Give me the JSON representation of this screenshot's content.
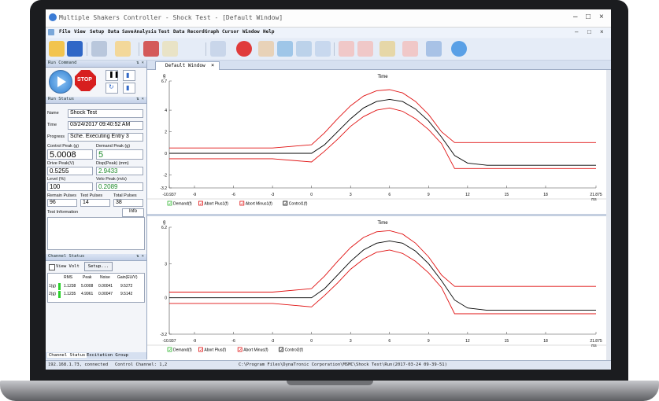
{
  "window": {
    "title": "Multiple Shakers Controller - Shock Test - [Default Window]"
  },
  "menu": [
    "File",
    "View",
    "Setup",
    "Data Save",
    "Analysis",
    "Test",
    "Data Record",
    "Graph",
    "Cursor",
    "Window",
    "Help"
  ],
  "toolbar": {
    "icons": [
      "open-icon",
      "save-icon",
      "hardware-icon",
      "report-icon",
      "test-setup-icon",
      "edit-icon",
      "waveform-icon",
      "stop-record-icon",
      "hand-icon",
      "zoom-in-icon",
      "zoom-fit-icon",
      "chart-icon",
      "chart2-icon",
      "cursor-icon",
      "chart3-icon",
      "flag-icon",
      "chat-icon"
    ]
  },
  "run_command": {
    "header": "Run Command",
    "stop_label": "STOP"
  },
  "run_status": {
    "header": "Run Status",
    "name_label": "Name",
    "name_value": "Shock Test",
    "time_label": "Time",
    "time_value": "03/24/2017 09:40:52 AM",
    "progress_label": "Progress",
    "progress_value": "Sche. Executing Entry 3",
    "control_peak_label": "Control Peak (g)",
    "control_peak_value": "5.0008",
    "demand_peak_label": "Demand Peak (g)",
    "demand_peak_value": "5",
    "drive_peak_label": "Drive Peak(V)",
    "drive_peak_value": "0.5255",
    "disp_peak_label": "Disp(Peak) (mm)",
    "disp_peak_value": "2.9433",
    "level_label": "Level (%)",
    "level_value": "100",
    "velo_peak_label": "Velo Peak (m/s)",
    "velo_peak_value": "0.2089",
    "remain_pulses_label": "Remain Pulses",
    "remain_pulses_value": "96",
    "test_pulses_label": "Test Pulses",
    "test_pulses_value": "14",
    "total_pulses_label": "Total Pulses",
    "total_pulses_value": "38",
    "test_info_label": "Test Information",
    "info_button": "Info"
  },
  "channel_status": {
    "header": "Channel Status",
    "view_volt_label": "View Volt",
    "setup_button": "Setup...",
    "columns": [
      "",
      "RMS",
      "Peak",
      "Noise",
      "Gain(EU/V)"
    ],
    "rows": [
      {
        "ch": "1(g)",
        "rms": "1.1238",
        "peak": "5.0008",
        "noise": "0.00041",
        "gain": "9.5272"
      },
      {
        "ch": "2(g)",
        "rms": "1.1235",
        "peak": "4.9961",
        "noise": "0.00047",
        "gain": "9.5142"
      }
    ]
  },
  "bottom_tabs": [
    "Channel Status",
    "Excitation Group"
  ],
  "tab_label": "Default Window",
  "chart_data": [
    {
      "type": "line",
      "title": "Time",
      "ylabel": "g",
      "xlabel": "ms",
      "xlim": [
        -10.937,
        21.875
      ],
      "ylim": [
        -3.2,
        6.7
      ],
      "yticks": [
        "6.7",
        "4",
        "2",
        "0",
        "-2",
        "-3.2"
      ],
      "xticks": [
        "-10.937",
        "-9",
        "-6",
        "-3",
        "0",
        "3",
        "6",
        "9",
        "12",
        "15",
        "18",
        "21.875"
      ],
      "legend": [
        "Demand(f)",
        "Abort Plus1(f)",
        "Abort Minus1(f)",
        "Control1(f)"
      ],
      "colors": {
        "Demand(f)": "#2bb52b",
        "Abort Plus1(f)": "#e01010",
        "Abort Minus1(f)": "#e01010",
        "Control1(f)": "#000000"
      },
      "series": [
        {
          "name": "Control1(f)",
          "x": [
            -10.937,
            -3,
            0,
            1,
            2,
            3,
            4,
            5,
            6,
            7,
            8,
            9,
            10,
            11,
            12,
            13.5,
            15,
            18,
            21.875
          ],
          "y": [
            0,
            0,
            0,
            0.8,
            2.0,
            3.2,
            4.2,
            4.8,
            5.0,
            4.8,
            4.1,
            3.0,
            1.5,
            -0.2,
            -0.9,
            -1.1,
            -1.1,
            -1.1,
            -1.1
          ]
        },
        {
          "name": "Abort Plus1(f)",
          "x": [
            -10.937,
            -3,
            0,
            1,
            2,
            3,
            4,
            5,
            6,
            7,
            8,
            9,
            10,
            11,
            12,
            15,
            18,
            21.875
          ],
          "y": [
            0.5,
            0.5,
            0.8,
            1.9,
            3.2,
            4.4,
            5.3,
            5.8,
            5.9,
            5.6,
            4.8,
            3.6,
            2.0,
            1.0,
            1.0,
            1.0,
            1.0,
            1.0
          ]
        },
        {
          "name": "Abort Minus1(f)",
          "x": [
            -10.937,
            -3,
            0,
            1,
            2,
            3,
            4,
            5,
            6,
            7,
            8,
            9,
            10,
            11,
            12,
            15,
            18,
            21.875
          ],
          "y": [
            -0.5,
            -0.5,
            -0.8,
            0.2,
            1.3,
            2.5,
            3.4,
            4.0,
            4.2,
            3.9,
            3.2,
            2.2,
            0.9,
            -1.4,
            -1.4,
            -1.4,
            -1.4,
            -1.4
          ]
        }
      ]
    },
    {
      "type": "line",
      "title": "Time",
      "ylabel": "g",
      "xlabel": "ms",
      "xlim": [
        -10.937,
        21.875
      ],
      "ylim": [
        -3.2,
        6.2
      ],
      "yticks": [
        "6.2",
        "3",
        "0",
        "-3.2"
      ],
      "xticks": [
        "-10.937",
        "-9",
        "-6",
        "-3",
        "0",
        "3",
        "6",
        "9",
        "12",
        "15",
        "18",
        "21.875"
      ],
      "legend": [
        "Demand(f)",
        "Abort Plus(f)",
        "Abort Minus(f)",
        "Control2(f)"
      ],
      "colors": {
        "Demand(f)": "#2bb52b",
        "Abort Plus(f)": "#e01010",
        "Abort Minus(f)": "#e01010",
        "Control2(f)": "#000000"
      },
      "series": [
        {
          "name": "Control2(f)",
          "x": [
            -10.937,
            -3,
            0,
            1,
            2,
            3,
            4,
            5,
            6,
            7,
            8,
            9,
            10,
            11,
            12,
            13.5,
            15,
            18,
            21.875
          ],
          "y": [
            0,
            0,
            0,
            0.8,
            2.0,
            3.2,
            4.2,
            4.8,
            5.0,
            4.8,
            4.1,
            3.0,
            1.5,
            -0.2,
            -0.9,
            -1.1,
            -1.1,
            -1.1,
            -1.1
          ]
        },
        {
          "name": "Abort Plus(f)",
          "x": [
            -10.937,
            -3,
            0,
            1,
            2,
            3,
            4,
            5,
            6,
            7,
            8,
            9,
            10,
            11,
            12,
            15,
            18,
            21.875
          ],
          "y": [
            0.5,
            0.5,
            0.8,
            1.9,
            3.2,
            4.4,
            5.3,
            5.8,
            5.9,
            5.6,
            4.8,
            3.6,
            2.0,
            1.0,
            1.0,
            1.0,
            1.0,
            1.0
          ]
        },
        {
          "name": "Abort Minus(f)",
          "x": [
            -10.937,
            -3,
            0,
            1,
            2,
            3,
            4,
            5,
            6,
            7,
            8,
            9,
            10,
            11,
            12,
            15,
            18,
            21.875
          ],
          "y": [
            -0.5,
            -0.5,
            -0.8,
            0.2,
            1.3,
            2.5,
            3.4,
            4.0,
            4.2,
            3.9,
            3.2,
            2.2,
            0.9,
            -1.4,
            -1.4,
            -1.4,
            -1.4,
            -1.4
          ]
        }
      ]
    }
  ],
  "statusbar": {
    "left": "192.168.1.73, connected",
    "middle": "Control Channel: 1,2",
    "right": "C:\\Program Files\\DynaTronic Corporation\\MSMC\\Shock Test\\Run(2017-03-24 09-39-51)"
  }
}
